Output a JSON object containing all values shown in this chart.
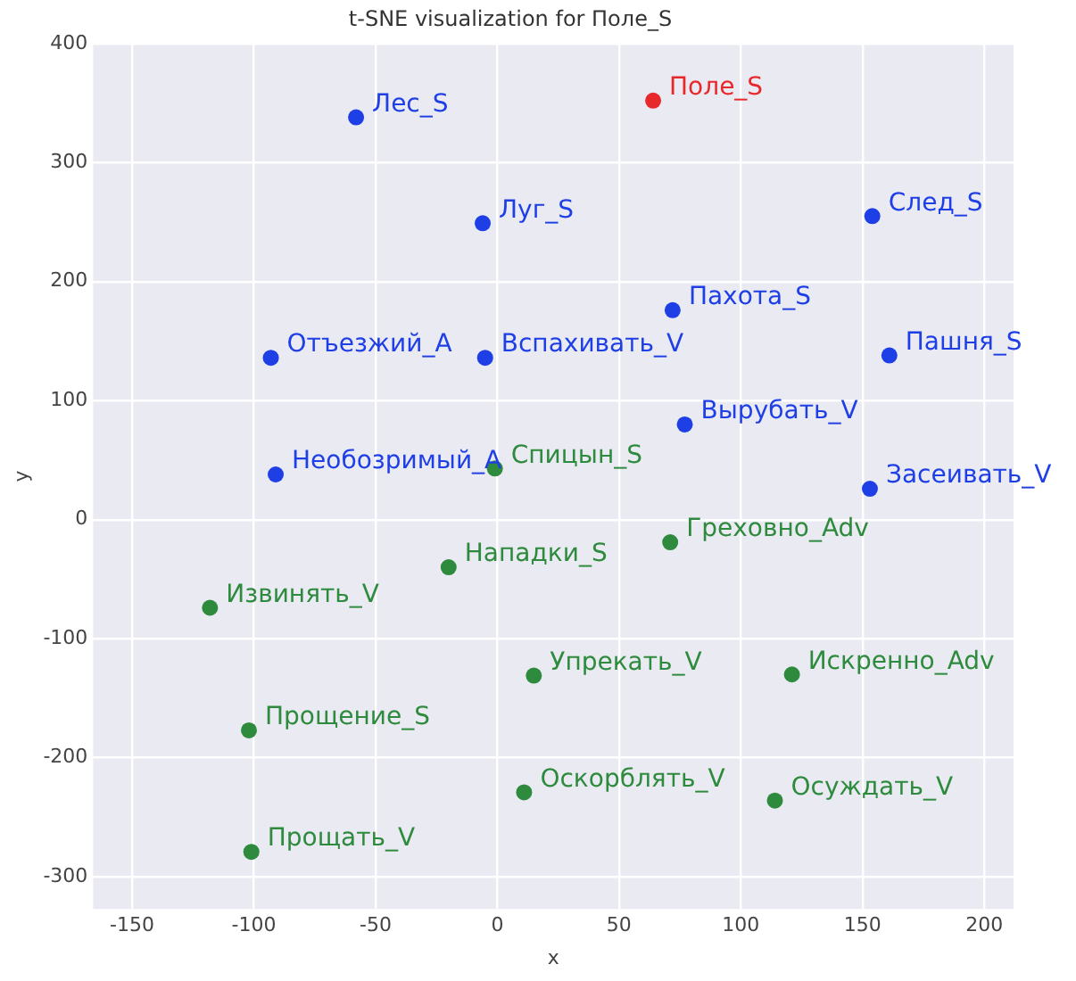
{
  "chart_data": {
    "type": "scatter",
    "title": "t-SNE visualization for Поле_S",
    "xlabel": "x",
    "ylabel": "y",
    "xlim": [
      -166,
      212
    ],
    "ylim": [
      -327,
      400
    ],
    "xticks": [
      -150,
      -100,
      -50,
      0,
      50,
      100,
      150,
      200
    ],
    "yticks": [
      -300,
      -200,
      -100,
      0,
      100,
      200,
      300,
      400
    ],
    "grid": true,
    "legend": false,
    "marker": "circle",
    "series": [
      {
        "color": "#1f3fe6",
        "x": [
          -58,
          -6,
          154,
          72,
          -93,
          -5,
          161,
          77,
          -91,
          153
        ],
        "values": [
          338,
          249,
          255,
          176,
          136,
          136,
          138,
          80,
          38,
          26
        ],
        "value_labels": [
          "Лес_S",
          "Луг_S",
          "След_S",
          "Пахота_S",
          "Отъезжий_A",
          "Вспахивать_V",
          "Пашня_S",
          "Вырубать_V",
          "Необозримый_A",
          "Засеивать_V"
        ]
      },
      {
        "color": "#2e8b3e",
        "x": [
          -1,
          71,
          -20,
          -118,
          15,
          121,
          -102,
          11,
          114,
          -101
        ],
        "values": [
          43,
          -19,
          -40,
          -74,
          -131,
          -130,
          -177,
          -229,
          -236,
          -279
        ],
        "value_labels": [
          "Спицын_S",
          "Греховно_Adv",
          "Нападки_S",
          "Извинять_V",
          "Упрекать_V",
          "Искренно_Adv",
          "Прощение_S",
          "Оскорблять_V",
          "Осуждать_V",
          "Прощать_V"
        ]
      },
      {
        "color": "#e8292c",
        "x": [
          64
        ],
        "values": [
          352
        ],
        "value_labels": [
          "Поле_S"
        ]
      }
    ]
  }
}
